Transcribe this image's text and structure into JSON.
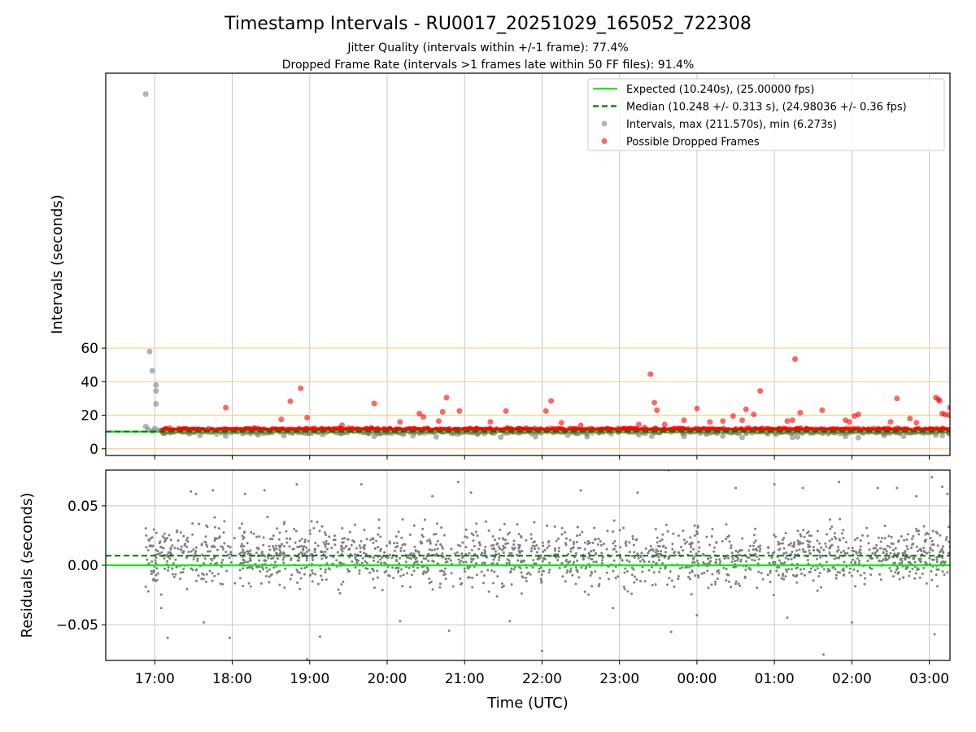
{
  "figure": {
    "title": "Timestamp Intervals - RU0017_20251029_165052_722308",
    "subtitle_1": "Jitter Quality (intervals within +/-1 frame): 77.4%",
    "subtitle_2": "Dropped Frame Rate (intervals >1 frames late within 50 FF files): 91.4%",
    "xlabel": "Time (UTC)"
  },
  "colors": {
    "expected": "#00ee00",
    "median": "#007700",
    "intervals": "#808080",
    "dropped": "#ff0000",
    "hgrid": "#ffd27f",
    "vgrid": "#c8c8c8"
  },
  "chart_data": [
    {
      "type": "scatter",
      "ylabel": "Intervals (seconds)",
      "xlim": [
        "16:22",
        "03:16"
      ],
      "ylim": [
        -4,
        224
      ],
      "yticks": [
        "0",
        "20",
        "40",
        "60"
      ],
      "xticks": [
        "17:00",
        "18:00",
        "19:00",
        "20:00",
        "21:00",
        "22:00",
        "23:00",
        "00:00",
        "01:00",
        "02:00",
        "03:00"
      ],
      "grid": "x, and horizontal lines at 0, 20, 40, 60",
      "legend_position": "upper-right",
      "expected_line": {
        "label": "Expected (10.240s), (25.00000 fps)",
        "y": 10.24
      },
      "median_line": {
        "label": "Median (10.248 +/- 0.313 s), (24.98036 +/- 0.36 fps)",
        "y": 10.248
      },
      "series": [
        {
          "name": "Intervals, max (211.570s), min (6.273s)",
          "points": [
            [
              "16:53",
              211.57
            ],
            [
              "16:56",
              58.0
            ],
            [
              "16:58",
              46.5
            ],
            [
              "17:01",
              38.0
            ],
            [
              "17:01",
              34.5
            ],
            [
              "17:01",
              26.8
            ],
            [
              "16:53",
              13.2
            ],
            [
              "16:55",
              11.5
            ],
            [
              "16:58",
              10.5
            ],
            [
              "17:00",
              12.0
            ],
            [
              "17:03",
              11.0
            ],
            [
              "17:35",
              8.0
            ],
            [
              "17:55",
              7.6
            ],
            [
              "18:20",
              8.3
            ],
            [
              "18:40",
              7.9
            ],
            [
              "19:10",
              8.6
            ],
            [
              "19:50",
              7.4
            ],
            [
              "20:20",
              7.8
            ],
            [
              "20:38",
              7.1
            ],
            [
              "21:10",
              8.7
            ],
            [
              "21:28",
              6.9
            ],
            [
              "21:55",
              7.2
            ],
            [
              "22:20",
              8.1
            ],
            [
              "22:35",
              7.2
            ],
            [
              "23:15",
              8.4
            ],
            [
              "23:25",
              7.5
            ],
            [
              "23:50",
              7.3
            ],
            [
              "00:20",
              7.6
            ],
            [
              "00:35",
              6.8
            ],
            [
              "00:55",
              8.9
            ],
            [
              "01:14",
              6.8
            ],
            [
              "01:18",
              7.0
            ],
            [
              "01:55",
              7.4
            ],
            [
              "02:05",
              6.6
            ],
            [
              "02:25",
              8.0
            ],
            [
              "02:40",
              7.5
            ],
            [
              "03:05",
              8.2
            ],
            [
              "03:10",
              7.9
            ]
          ]
        },
        {
          "name": "Possible Dropped Frames",
          "points": [
            [
              "17:55",
              24.5
            ],
            [
              "18:38",
              17.5
            ],
            [
              "18:45",
              28.3
            ],
            [
              "18:53",
              36.0
            ],
            [
              "18:58",
              18.5
            ],
            [
              "19:25",
              14.0
            ],
            [
              "19:50",
              27.0
            ],
            [
              "20:10",
              16.0
            ],
            [
              "20:25",
              21.0
            ],
            [
              "20:28",
              19.0
            ],
            [
              "20:40",
              16.5
            ],
            [
              "20:43",
              22.0
            ],
            [
              "20:46",
              30.5
            ],
            [
              "20:56",
              22.5
            ],
            [
              "21:20",
              16.0
            ],
            [
              "21:32",
              22.5
            ],
            [
              "22:03",
              22.5
            ],
            [
              "22:07",
              28.5
            ],
            [
              "22:15",
              15.5
            ],
            [
              "22:30",
              14.0
            ],
            [
              "23:15",
              14.5
            ],
            [
              "23:24",
              44.5
            ],
            [
              "23:27",
              27.5
            ],
            [
              "23:29",
              23.0
            ],
            [
              "23:35",
              14.5
            ],
            [
              "23:50",
              17.0
            ],
            [
              "24:00",
              24.0
            ],
            [
              "24:10",
              16.0
            ],
            [
              "24:20",
              16.5
            ],
            [
              "24:28",
              19.5
            ],
            [
              "24:35",
              17.0
            ],
            [
              "24:38",
              23.5
            ],
            [
              "24:44",
              20.5
            ],
            [
              "24:49",
              34.5
            ],
            [
              "25:10",
              16.5
            ],
            [
              "25:14",
              17.0
            ],
            [
              "25:20",
              21.5
            ],
            [
              "25:16",
              53.5
            ],
            [
              "25:37",
              23.0
            ],
            [
              "25:55",
              17.0
            ],
            [
              "25:58",
              16.0
            ],
            [
              "26:02",
              19.5
            ],
            [
              "26:05",
              20.5
            ],
            [
              "26:30",
              16.0
            ],
            [
              "26:35",
              30.0
            ],
            [
              "26:45",
              18.0
            ],
            [
              "26:50",
              15.5
            ],
            [
              "27:05",
              30.5
            ],
            [
              "27:07",
              29.5
            ],
            [
              "27:08",
              28.5
            ],
            [
              "27:10",
              21.0
            ],
            [
              "27:12",
              20.5
            ],
            [
              "27:15",
              20.0
            ],
            [
              "27:16",
              24.5
            ]
          ]
        }
      ]
    },
    {
      "type": "scatter",
      "ylabel": "Residuals (seconds)",
      "xlim": [
        "16:22",
        "03:16"
      ],
      "ylim": [
        -0.08,
        0.08
      ],
      "yticks": [
        "−0.05",
        "0.00",
        "0.05"
      ],
      "xticks": [
        "17:00",
        "18:00",
        "19:00",
        "20:00",
        "21:00",
        "22:00",
        "23:00",
        "00:00",
        "01:00",
        "02:00",
        "03:00"
      ],
      "grid": "both",
      "expected_line_y": 0.0,
      "median_line_y": 0.008,
      "series": [
        {
          "name": "Residuals",
          "points": [
            [
              "16:53",
              0.031
            ],
            [
              "16:53",
              -0.018
            ],
            [
              "16:55",
              -0.022
            ],
            [
              "17:05",
              -0.036
            ],
            [
              "17:10",
              -0.061
            ],
            [
              "17:25",
              -0.02
            ],
            [
              "17:28",
              0.062
            ],
            [
              "17:32",
              0.06
            ],
            [
              "17:38",
              -0.048
            ],
            [
              "17:45",
              0.063
            ],
            [
              "17:58",
              -0.061
            ],
            [
              "18:10",
              0.06
            ],
            [
              "18:25",
              0.063
            ],
            [
              "18:50",
              0.068
            ],
            [
              "18:58",
              -0.079
            ],
            [
              "19:08",
              -0.06
            ],
            [
              "19:40",
              0.068
            ],
            [
              "20:10",
              -0.047
            ],
            [
              "20:35",
              0.058
            ],
            [
              "20:48",
              -0.055
            ],
            [
              "20:55",
              0.07
            ],
            [
              "21:05",
              0.061
            ],
            [
              "21:35",
              -0.047
            ],
            [
              "22:00",
              -0.072
            ],
            [
              "22:30",
              0.063
            ],
            [
              "22:55",
              -0.036
            ],
            [
              "23:14",
              0.061
            ],
            [
              "23:38",
              0.08
            ],
            [
              "23:40",
              -0.056
            ],
            [
              "24:00",
              -0.042
            ],
            [
              "24:30",
              0.065
            ],
            [
              "25:00",
              0.068
            ],
            [
              "25:10",
              -0.044
            ],
            [
              "25:22",
              0.065
            ],
            [
              "25:38",
              -0.075
            ],
            [
              "25:50",
              0.07
            ],
            [
              "26:00",
              -0.048
            ],
            [
              "26:20",
              0.065
            ],
            [
              "26:35",
              0.065
            ],
            [
              "26:50",
              0.058
            ],
            [
              "27:02",
              0.074
            ],
            [
              "27:04",
              -0.058
            ],
            [
              "27:10",
              0.066
            ],
            [
              "27:14",
              0.06
            ],
            [
              "27:16",
              0.045
            ]
          ]
        }
      ]
    }
  ]
}
